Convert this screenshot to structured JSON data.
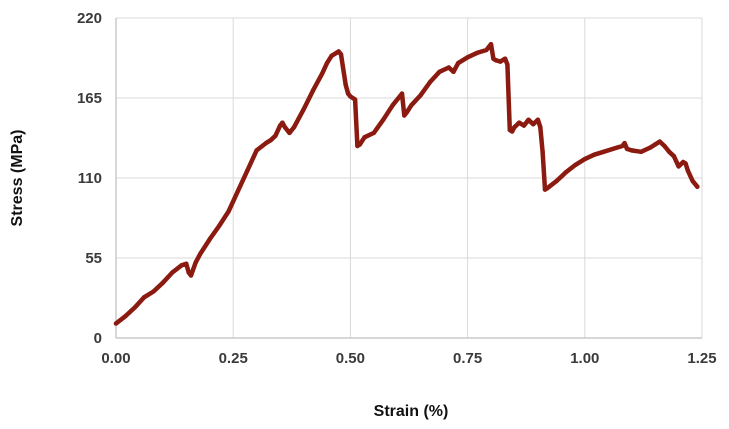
{
  "chart_data": {
    "type": "line",
    "title": "",
    "xlabel": "Strain (%)",
    "ylabel": "Stress (MPa)",
    "xlim": [
      0,
      1.25
    ],
    "ylim": [
      0,
      220
    ],
    "x_ticks": [
      0,
      0.25,
      0.5,
      0.75,
      1.0,
      1.25
    ],
    "x_tick_labels": [
      "0.00",
      "0.25",
      "0.50",
      "0.75",
      "1.00",
      "1.25"
    ],
    "y_ticks": [
      0,
      55,
      110,
      165,
      220
    ],
    "y_tick_labels": [
      "0",
      "55",
      "110",
      "165",
      "220"
    ],
    "grid": true,
    "legend": "none",
    "line_color": "#8b1a10",
    "series": [
      {
        "x": [
          0.0,
          0.02,
          0.04,
          0.06,
          0.08,
          0.1,
          0.12,
          0.14,
          0.15,
          0.155,
          0.16,
          0.17,
          0.18,
          0.2,
          0.22,
          0.24,
          0.26,
          0.28,
          0.3,
          0.32,
          0.33,
          0.34,
          0.35,
          0.355,
          0.36,
          0.37,
          0.38,
          0.4,
          0.42,
          0.44,
          0.45,
          0.46,
          0.47,
          0.475,
          0.48,
          0.49,
          0.495,
          0.5,
          0.51,
          0.515,
          0.52,
          0.53,
          0.55,
          0.57,
          0.59,
          0.61,
          0.615,
          0.62,
          0.63,
          0.65,
          0.67,
          0.69,
          0.71,
          0.72,
          0.73,
          0.75,
          0.77,
          0.79,
          0.8,
          0.805,
          0.81,
          0.82,
          0.83,
          0.835,
          0.84,
          0.845,
          0.85,
          0.86,
          0.87,
          0.88,
          0.89,
          0.9,
          0.905,
          0.91,
          0.915,
          0.92,
          0.94,
          0.96,
          0.98,
          1.0,
          1.02,
          1.04,
          1.06,
          1.08,
          1.085,
          1.09,
          1.1,
          1.12,
          1.14,
          1.15,
          1.16,
          1.17,
          1.18,
          1.19,
          1.2,
          1.21,
          1.215,
          1.22,
          1.23,
          1.24
        ],
        "y": [
          10,
          15,
          21,
          28,
          32,
          38,
          45,
          50,
          51,
          45,
          43,
          52,
          58,
          68,
          77,
          87,
          101,
          115,
          129,
          134,
          136,
          139,
          146,
          148,
          145,
          141,
          145,
          157,
          170,
          182,
          189,
          194,
          196,
          197,
          195,
          174,
          168,
          166,
          164,
          132,
          133,
          138,
          141,
          150,
          160,
          168,
          153,
          155,
          160,
          167,
          176,
          183,
          186,
          183,
          189,
          193,
          196,
          198,
          202,
          192,
          191,
          190,
          192,
          188,
          143,
          142,
          145,
          148,
          146,
          150,
          147,
          150,
          145,
          128,
          102,
          103,
          108,
          114,
          119,
          123,
          126,
          128,
          130,
          132,
          134,
          130,
          129,
          128,
          131,
          133,
          135,
          132,
          128,
          125,
          118,
          121,
          120,
          115,
          108,
          104
        ]
      }
    ]
  }
}
